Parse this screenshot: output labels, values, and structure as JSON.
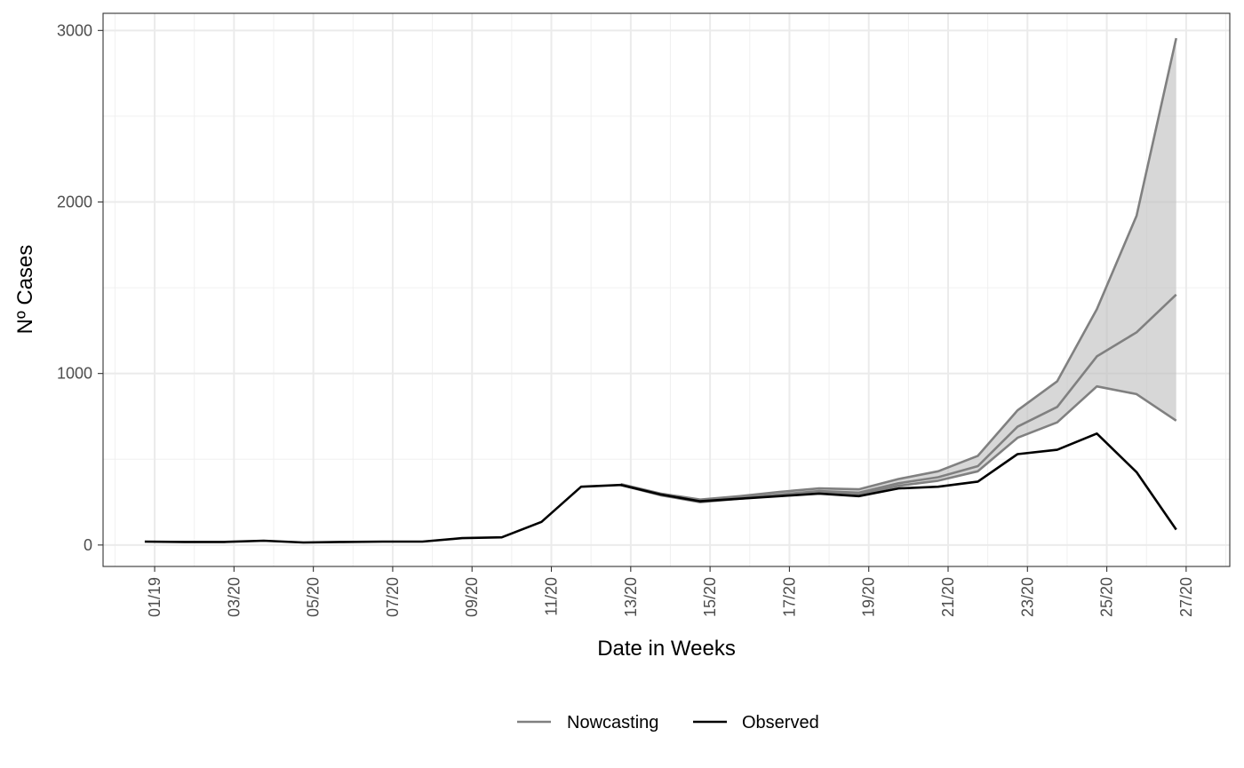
{
  "chart_data": {
    "type": "line",
    "title": "",
    "xlabel": "Date in Weeks",
    "ylabel": "Nº Cases",
    "ylim": [
      -125,
      3100
    ],
    "y_ticks": [
      0,
      1000,
      2000,
      3000
    ],
    "x_ticks": [
      {
        "week": 1,
        "label": "01/19"
      },
      {
        "week": 3,
        "label": "03/20"
      },
      {
        "week": 5,
        "label": "05/20"
      },
      {
        "week": 7,
        "label": "07/20"
      },
      {
        "week": 9,
        "label": "09/20"
      },
      {
        "week": 11,
        "label": "11/20"
      },
      {
        "week": 13,
        "label": "13/20"
      },
      {
        "week": 15,
        "label": "15/20"
      },
      {
        "week": 17,
        "label": "17/20"
      },
      {
        "week": 19,
        "label": "19/20"
      },
      {
        "week": 21,
        "label": "21/20"
      },
      {
        "week": 23,
        "label": "23/20"
      },
      {
        "week": 25,
        "label": "25/20"
      },
      {
        "week": 27,
        "label": "27/20"
      }
    ],
    "grid": true,
    "legend_position": "bottom",
    "series": [
      {
        "name": "Observed",
        "color": "#000000",
        "x": [
          0.75,
          1.75,
          2.75,
          3.75,
          4.75,
          5.75,
          6.75,
          7.75,
          8.75,
          9.75,
          10.75,
          11.75,
          12.75,
          13.75,
          14.75,
          15.75,
          16.75,
          17.75,
          18.75,
          19.75,
          20.75,
          21.75,
          22.75,
          23.75,
          24.75,
          25.75,
          26.75
        ],
        "y": [
          20,
          18,
          18,
          25,
          15,
          18,
          20,
          20,
          40,
          45,
          135,
          340,
          350,
          295,
          255,
          270,
          285,
          300,
          285,
          330,
          340,
          370,
          530,
          555,
          650,
          425,
          90
        ]
      },
      {
        "name": "Nowcasting",
        "color": "#808080",
        "x": [
          12.75,
          13.75,
          14.75,
          15.75,
          16.75,
          17.75,
          18.75,
          19.75,
          20.75,
          21.75,
          22.75,
          23.75,
          24.75,
          25.75,
          26.75
        ],
        "median": [
          350,
          295,
          255,
          275,
          295,
          315,
          305,
          360,
          395,
          460,
          690,
          805,
          1100,
          1240,
          1460
        ],
        "lower": [
          350,
          290,
          250,
          270,
          290,
          305,
          295,
          345,
          375,
          430,
          625,
          715,
          925,
          880,
          725
        ],
        "upper": [
          355,
          300,
          265,
          285,
          310,
          330,
          325,
          385,
          430,
          520,
          785,
          955,
          1375,
          1920,
          2955
        ]
      }
    ]
  }
}
